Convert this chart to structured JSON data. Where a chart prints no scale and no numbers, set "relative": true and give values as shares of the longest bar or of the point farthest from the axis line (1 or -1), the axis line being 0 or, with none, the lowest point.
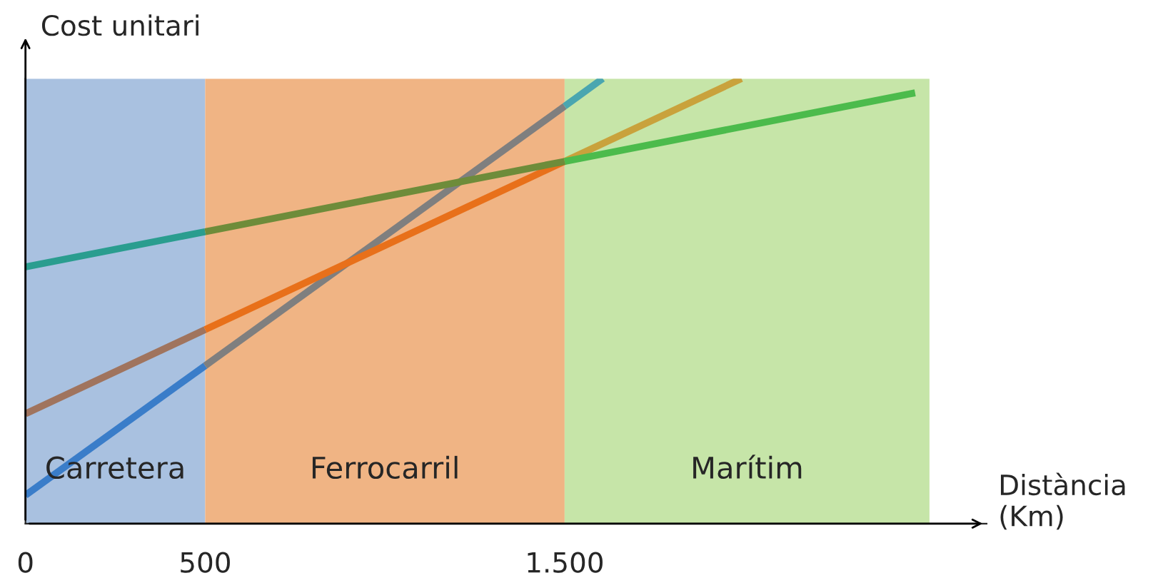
{
  "chart_data": {
    "type": "line",
    "relative": true,
    "ylabel": "Cost unitari",
    "xlabel": "Distància\n(Km)",
    "xlim": [
      0,
      2674
    ],
    "xticks": [
      0,
      500,
      {
        "value": 1500,
        "label": "1.500"
      }
    ],
    "bands": [
      {
        "axis": "x",
        "from": 0,
        "to": 500,
        "label": "Carretera",
        "color": "#a9c1e0"
      },
      {
        "axis": "x",
        "from": 500,
        "to": 1500,
        "label": "Ferrocarril",
        "color": "#f0b484"
      },
      {
        "axis": "x",
        "from": 1500,
        "to": 2515,
        "label": "Marítim",
        "color": "#c6e5a8"
      }
    ],
    "series": [
      {
        "color": "#3a7dc9",
        "x": [
          0,
          500
        ],
        "values": [
          0.064,
          0.355
        ]
      },
      {
        "color": "#7f7f7f",
        "x": [
          500,
          1500
        ],
        "values": [
          0.355,
          0.938
        ]
      },
      {
        "color": "#4aa6b0",
        "x": [
          1500,
          1606
        ],
        "values": [
          0.938,
          1
        ]
      },
      {
        "color": "#a0745e",
        "x": [
          0,
          500
        ],
        "values": [
          0.247,
          0.436
        ]
      },
      {
        "color": "#e8701a",
        "x": [
          500,
          1500
        ],
        "values": [
          0.436,
          0.814
        ]
      },
      {
        "color": "#c9a23c",
        "x": [
          1500,
          1992
        ],
        "values": [
          0.814,
          1
        ]
      },
      {
        "color": "#2a9d8f",
        "x": [
          0,
          500
        ],
        "values": [
          0.577,
          0.656
        ]
      },
      {
        "color": "#6e8c3a",
        "x": [
          500,
          1500
        ],
        "values": [
          0.656,
          0.814
        ]
      },
      {
        "color": "#4cbb4c",
        "x": [
          1500,
          2475
        ],
        "values": [
          0.814,
          0.968
        ]
      }
    ]
  }
}
